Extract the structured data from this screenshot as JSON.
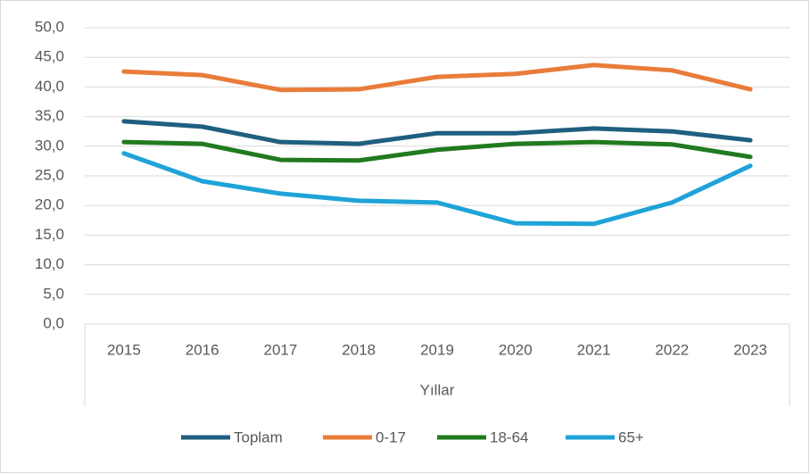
{
  "chart_data": {
    "type": "line",
    "x_label": "Yıllar",
    "categories": [
      "2015",
      "2016",
      "2017",
      "2018",
      "2019",
      "2020",
      "2021",
      "2022",
      "2023"
    ],
    "series": [
      {
        "name": "Toplam",
        "color": "#1f5f7f",
        "values": [
          34.2,
          33.3,
          30.7,
          30.4,
          32.2,
          32.2,
          33.0,
          32.5,
          31.0
        ]
      },
      {
        "name": "0-17",
        "color": "#e97c3a",
        "values": [
          42.6,
          42.0,
          39.5,
          39.6,
          41.7,
          42.2,
          43.7,
          42.8,
          39.6
        ]
      },
      {
        "name": "18-64",
        "color": "#217a1f",
        "values": [
          30.7,
          30.4,
          27.7,
          27.6,
          29.4,
          30.4,
          30.7,
          30.3,
          28.2
        ]
      },
      {
        "name": "65+",
        "color": "#1fa3d8",
        "values": [
          28.8,
          24.1,
          22.0,
          20.8,
          20.5,
          17.0,
          16.9,
          20.5,
          26.7
        ]
      }
    ],
    "ylim": [
      0,
      50
    ],
    "yticks": [
      {
        "value": 0,
        "label": "0,0"
      },
      {
        "value": 5,
        "label": "5,0"
      },
      {
        "value": 10,
        "label": "10,0"
      },
      {
        "value": 15,
        "label": "15,0"
      },
      {
        "value": 20,
        "label": "20,0"
      },
      {
        "value": 25,
        "label": "25,0"
      },
      {
        "value": 30,
        "label": "30,0"
      },
      {
        "value": 35,
        "label": "35,0"
      },
      {
        "value": 40,
        "label": "40,0"
      },
      {
        "value": 45,
        "label": "45,0"
      },
      {
        "value": 50,
        "label": "50,0"
      }
    ],
    "grid": true,
    "legend": "bottom"
  }
}
